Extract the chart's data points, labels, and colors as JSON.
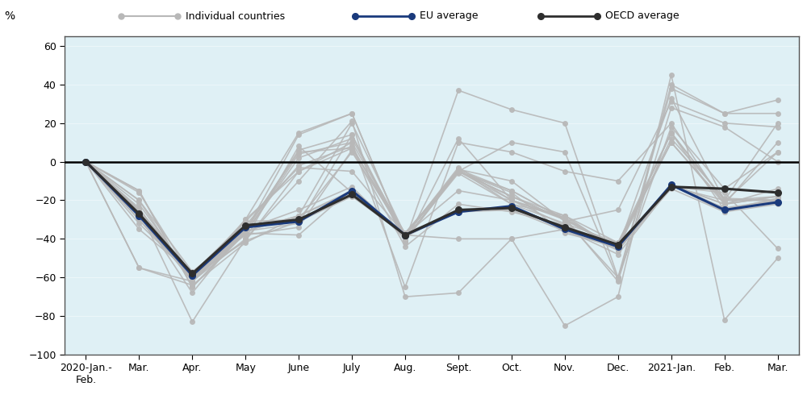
{
  "x_labels": [
    "2020-Jan.-\nFeb.",
    "Mar.",
    "Apr.",
    "May",
    "June",
    "July",
    "Aug.",
    "Sept.",
    "Oct.",
    "Nov.",
    "Dec.",
    "2021-Jan.",
    "Feb.",
    "Mar."
  ],
  "eu_average": [
    0,
    -28,
    -59,
    -34,
    -31,
    -15,
    -38,
    -26,
    -23,
    -35,
    -44,
    -12,
    -25,
    -21
  ],
  "oecd_average": [
    0,
    -27,
    -58,
    -33,
    -30,
    -17,
    -38,
    -25,
    -24,
    -34,
    -43,
    -13,
    -14,
    -16
  ],
  "individual_countries": [
    [
      0,
      -15,
      -65,
      -37,
      4,
      10,
      -65,
      10,
      5,
      -5,
      -10,
      20,
      -22,
      10
    ],
    [
      0,
      -20,
      -62,
      -30,
      15,
      25,
      -41,
      37,
      27,
      20,
      -60,
      40,
      25,
      32
    ],
    [
      0,
      -25,
      -83,
      -40,
      -10,
      21,
      -70,
      -68,
      -40,
      -85,
      -70,
      45,
      -82,
      -50
    ],
    [
      0,
      -30,
      -60,
      -35,
      5,
      7,
      -37,
      -5,
      -18,
      -30,
      -45,
      33,
      -20,
      -20
    ],
    [
      0,
      -55,
      -64,
      -42,
      -28,
      -15,
      -38,
      -40,
      -40,
      -35,
      -48,
      -13,
      -16,
      -45
    ],
    [
      0,
      -25,
      -58,
      -31,
      -30,
      5,
      -38,
      -5,
      -18,
      -30,
      -60,
      18,
      -14,
      5
    ],
    [
      0,
      -55,
      -62,
      -36,
      6,
      14,
      -42,
      12,
      -20,
      -29,
      -62,
      28,
      18,
      0
    ],
    [
      0,
      -22,
      -60,
      -37,
      -38,
      -14,
      -38,
      -5,
      -20,
      -30,
      -45,
      -12,
      -26,
      -20
    ],
    [
      0,
      -28,
      -62,
      -40,
      8,
      -16,
      -37,
      -5,
      -15,
      -30,
      -44,
      15,
      -20,
      -20
    ],
    [
      0,
      -30,
      -60,
      -36,
      -28,
      20,
      -38,
      -4,
      -10,
      -31,
      -25,
      31,
      20,
      18
    ],
    [
      0,
      -15,
      -65,
      -36,
      14,
      25,
      -41,
      -5,
      10,
      5,
      -61,
      38,
      25,
      25
    ],
    [
      0,
      -26,
      -68,
      -34,
      -31,
      -17,
      -37,
      -26,
      -24,
      -34,
      -44,
      -12,
      -25,
      -19
    ],
    [
      0,
      -30,
      -60,
      -31,
      -3,
      -5,
      -38,
      -4,
      -15,
      -30,
      -44,
      10,
      -21,
      5
    ],
    [
      0,
      -28,
      -60,
      -41,
      -5,
      7,
      -38,
      -4,
      -22,
      -28,
      -46,
      -13,
      -20,
      -18
    ],
    [
      0,
      -35,
      -58,
      -38,
      -34,
      6,
      -44,
      -22,
      -26,
      -33,
      -46,
      -12,
      -22,
      -14
    ],
    [
      0,
      -16,
      -60,
      -33,
      -2,
      8,
      -40,
      -5,
      -18,
      -28,
      -42,
      15,
      -20,
      20
    ],
    [
      0,
      -28,
      -60,
      -36,
      -32,
      14,
      -40,
      -5,
      -16,
      -37,
      -44,
      -12,
      -24,
      -20
    ],
    [
      0,
      -24,
      -62,
      -37,
      2,
      12,
      -38,
      -3,
      -20,
      -29,
      -45,
      12,
      -19,
      -20
    ],
    [
      0,
      -32,
      -59,
      -41,
      -31,
      -18,
      -38,
      -26,
      -25,
      -36,
      -45,
      -14,
      -26,
      -22
    ],
    [
      0,
      -20,
      -57,
      -35,
      -25,
      -13,
      -40,
      -6,
      -22,
      -32,
      -42,
      10,
      -22,
      -18
    ],
    [
      0,
      -26,
      -60,
      -30,
      -5,
      10,
      -38,
      -15,
      -20,
      -33,
      -44,
      15,
      -25,
      -20
    ],
    [
      0,
      -25,
      -58,
      -36,
      -28,
      -16,
      -39,
      -25,
      -24,
      -35,
      -43,
      -12,
      -22,
      -18
    ]
  ],
  "plot_bg": "#dff0f5",
  "fig_bg": "#ffffff",
  "legend_bg": "#c8c8c8",
  "gray_color": "#b8b8b8",
  "eu_color": "#1a3a7c",
  "oecd_color": "#2e2e2e",
  "zero_line_color": "#000000",
  "border_color": "#555555",
  "ylim": [
    -100,
    65
  ],
  "yticks": [
    -100,
    -80,
    -60,
    -40,
    -20,
    0,
    20,
    40,
    60
  ],
  "legend_fontsize": 9,
  "tick_fontsize": 9,
  "ylabel_text": "%"
}
